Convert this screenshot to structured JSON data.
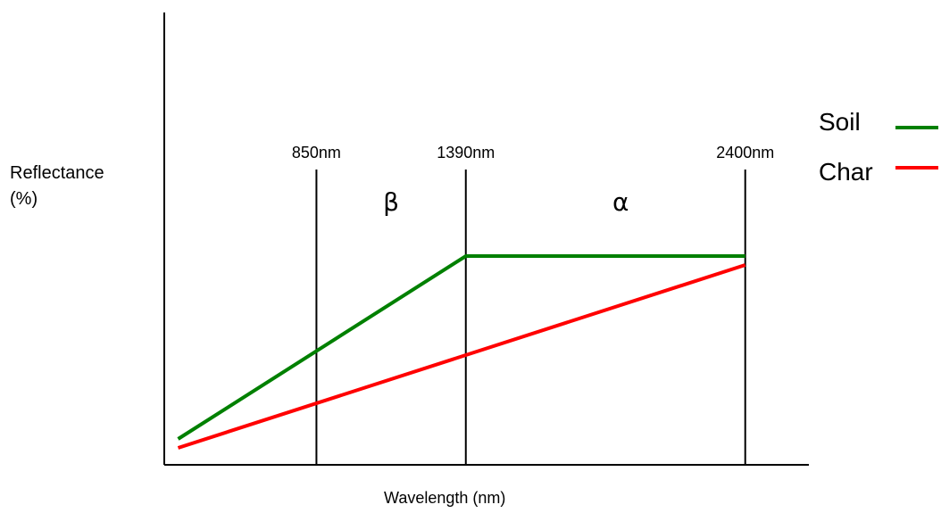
{
  "chart_data": {
    "type": "line",
    "title": "",
    "xlabel": "Wavelength (nm)",
    "ylabel_lines": [
      "Reflectance",
      "(%)"
    ],
    "grid": false,
    "legend_position": "right",
    "markers": [
      {
        "label": "850nm",
        "x": 850
      },
      {
        "label": "1390nm",
        "x": 1390
      },
      {
        "label": "2400nm",
        "x": 2400
      }
    ],
    "regions": [
      {
        "label": "β",
        "x": 1120
      },
      {
        "label": "α",
        "x": 1950
      }
    ],
    "series": [
      {
        "name": "Soil",
        "color": "#008000",
        "points": [
          [
            350,
            6
          ],
          [
            1390,
            47
          ],
          [
            2400,
            47
          ]
        ]
      },
      {
        "name": "Char",
        "color": "#ff0000",
        "points": [
          [
            350,
            4
          ],
          [
            2400,
            45
          ]
        ]
      }
    ],
    "xlim": [
      300,
      2630
    ],
    "ylim": [
      0,
      100
    ]
  }
}
